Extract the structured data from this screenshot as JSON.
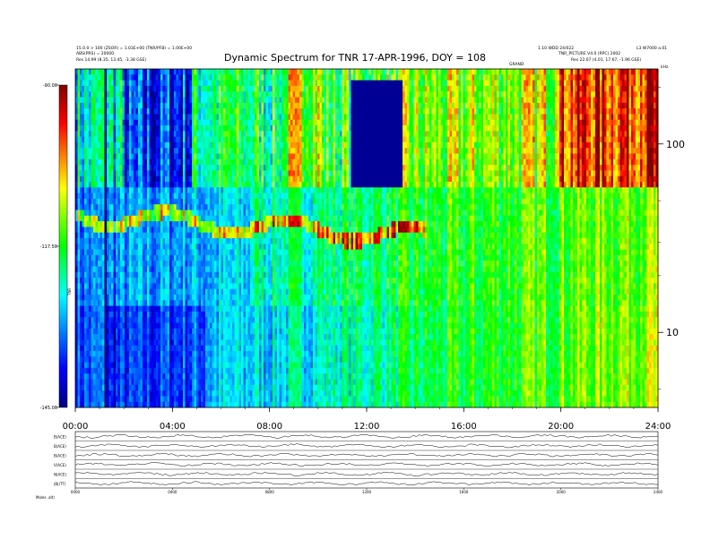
{
  "header": {
    "left_line1": "15.0.0 > 100 (ZSOR) = 1.03E+00 (TNR/PFB) = 1.00E+00",
    "left_line2": "ABS(PRS) = 20000",
    "left_line3": "Res    14.99 (8.35, 13.45, -3.38 GSE)",
    "right_line1": "1.10 WDD 24/022",
    "right_line2": "TNR_PICTURE V4.0 (RPC) 2002",
    "right_line3": "Res    22.07 (4.01, 17.67, -1.96 GSE)",
    "far_right": "L3 W7000 a.01",
    "center_small": "GRAND"
  },
  "chart_data": [
    {
      "type": "heatmap",
      "title": "Dynamic Spectrum for TNR 17-APR-1996, DOY = 108",
      "xlabel": "",
      "ylabel": "kHz",
      "x_range_hours": [
        0,
        24
      ],
      "x_ticks": [
        "00:00",
        "04:00",
        "08:00",
        "12:00",
        "16:00",
        "20:00",
        "24:00"
      ],
      "y_scale": "log",
      "y_range_khz": [
        4,
        250
      ],
      "y_ticks": [
        "100",
        "10"
      ],
      "colorbar": {
        "label": "TNR",
        "ticks": [
          "-90.00",
          "-117.50",
          "-145.00"
        ],
        "range_db": [
          -145,
          -90
        ],
        "colors": [
          "#000080",
          "#0000ff",
          "#00ffff",
          "#00ff00",
          "#ffff00",
          "#ff0000",
          "#800000"
        ]
      },
      "band_edges_khz": [
        60,
        14
      ],
      "dark_window_hours": [
        11.3,
        13.4
      ],
      "data_gap_hour": 1.2
    },
    {
      "type": "line",
      "panel_labels": [
        "B(ACE)",
        "B(ACE)",
        "B(ACE)",
        "V(ACE)",
        "N(ACE)",
        "|B|(TT)"
      ],
      "x_ticks": [
        "0000",
        "0400",
        "0800",
        "1200",
        "1600",
        "2000",
        "2400"
      ],
      "footer": "Moles  .alt)"
    }
  ]
}
